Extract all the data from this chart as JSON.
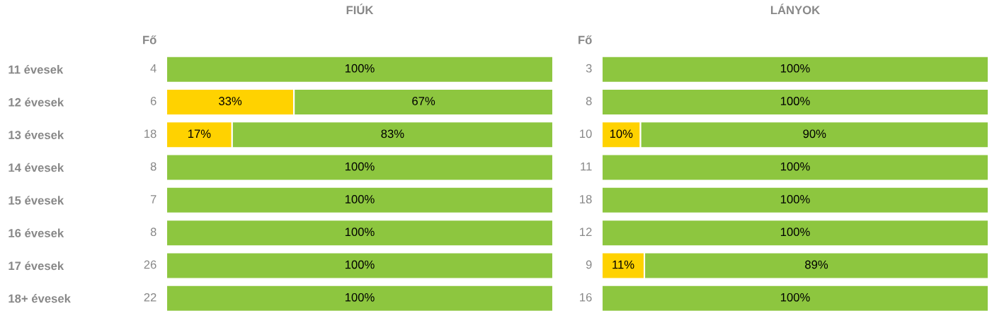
{
  "chart_data": [
    {
      "type": "bar",
      "title": "FIÚK",
      "orientation": "horizontal",
      "stacked": true,
      "xlim": [
        0,
        100
      ],
      "tick_labels": "y",
      "categories": [
        "11 évesek",
        "12 évesek",
        "13 évesek",
        "14 évesek",
        "15 évesek",
        "16 évesek",
        "17 évesek",
        "18+ évesek"
      ],
      "annotations": [
        "Fő",
        "4",
        "6",
        "18",
        "8",
        "7",
        "8",
        "26",
        "22"
      ],
      "series": [
        {
          "color": "#ffd200",
          "values": [
            null,
            33,
            17,
            null,
            null,
            null,
            null,
            null
          ],
          "value_labels": [
            null,
            "33%",
            "17%",
            null,
            null,
            null,
            null,
            null
          ]
        },
        {
          "color": "#8dc63f",
          "values": [
            100,
            67,
            83,
            100,
            100,
            100,
            100,
            100
          ],
          "value_labels": [
            "100%",
            "67%",
            "83%",
            "100%",
            "100%",
            "100%",
            "100%",
            "100%"
          ]
        }
      ]
    },
    {
      "type": "bar",
      "title": "LÁNYOK",
      "orientation": "horizontal",
      "stacked": true,
      "xlim": [
        0,
        100
      ],
      "tick_labels": false,
      "categories": [
        null,
        null,
        null,
        null,
        null,
        null,
        null,
        null
      ],
      "annotations": [
        "Fő",
        "3",
        "8",
        "10",
        "11",
        "18",
        "12",
        "9",
        "16"
      ],
      "series": [
        {
          "color": "#ffd200",
          "values": [
            null,
            null,
            10,
            null,
            null,
            null,
            11,
            null
          ],
          "value_labels": [
            null,
            null,
            "10%",
            null,
            null,
            null,
            "11%",
            null
          ]
        },
        {
          "color": "#8dc63f",
          "values": [
            100,
            100,
            90,
            100,
            100,
            100,
            89,
            100
          ],
          "value_labels": [
            "100%",
            "100%",
            "90%",
            "100%",
            "100%",
            "100%",
            "89%",
            "100%"
          ]
        }
      ]
    }
  ]
}
